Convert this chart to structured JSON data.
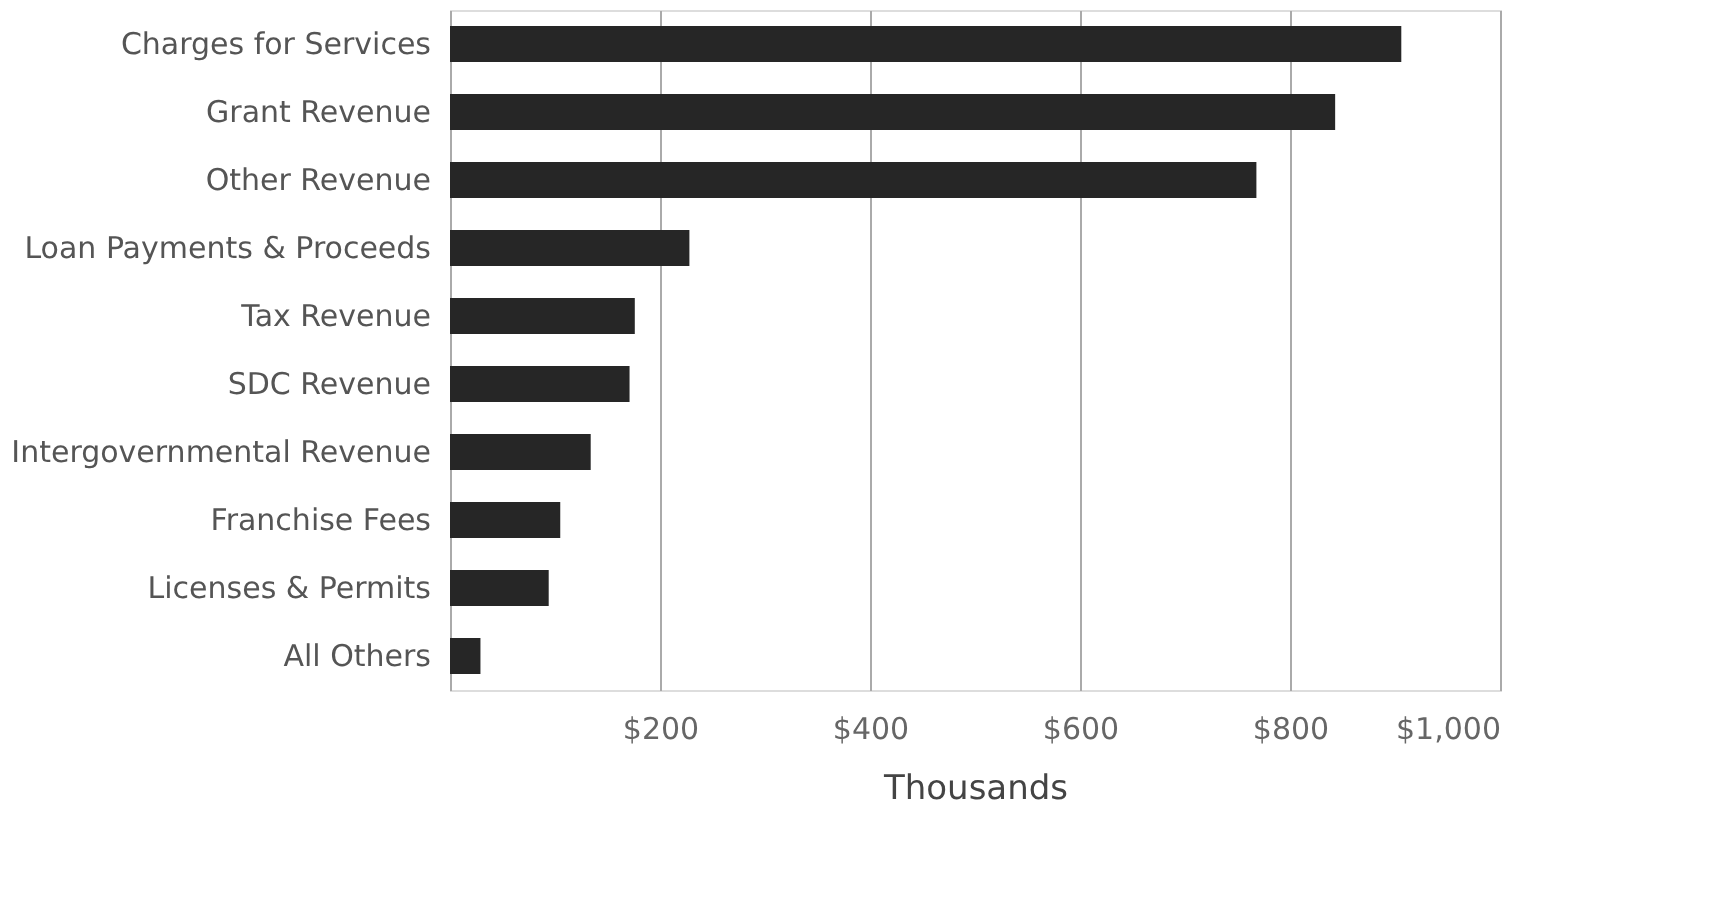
{
  "chart_data": {
    "type": "bar",
    "orientation": "horizontal",
    "xlabel": "Thousands",
    "categories": [
      "Charges for Services",
      "Grant Revenue",
      "Other Revenue",
      "Loan Payments & Proceeds",
      "Tax Revenue",
      "SDC Revenue",
      "Intergovernmental Revenue",
      "Franchise Fees",
      "Licenses & Permits",
      "All Others"
    ],
    "values": [
      906,
      843,
      768,
      228,
      176,
      171,
      134,
      105,
      94,
      29
    ],
    "color": "#262626",
    "xlim": [
      0,
      1000
    ],
    "xticks": [
      {
        "value": 0,
        "label": null
      },
      {
        "value": 200,
        "label": "$200"
      },
      {
        "value": 400,
        "label": "$400"
      },
      {
        "value": 600,
        "label": "$600"
      },
      {
        "value": 800,
        "label": "$800"
      },
      {
        "value": 1000,
        "label": "$1,000"
      }
    ],
    "grid": "x"
  }
}
